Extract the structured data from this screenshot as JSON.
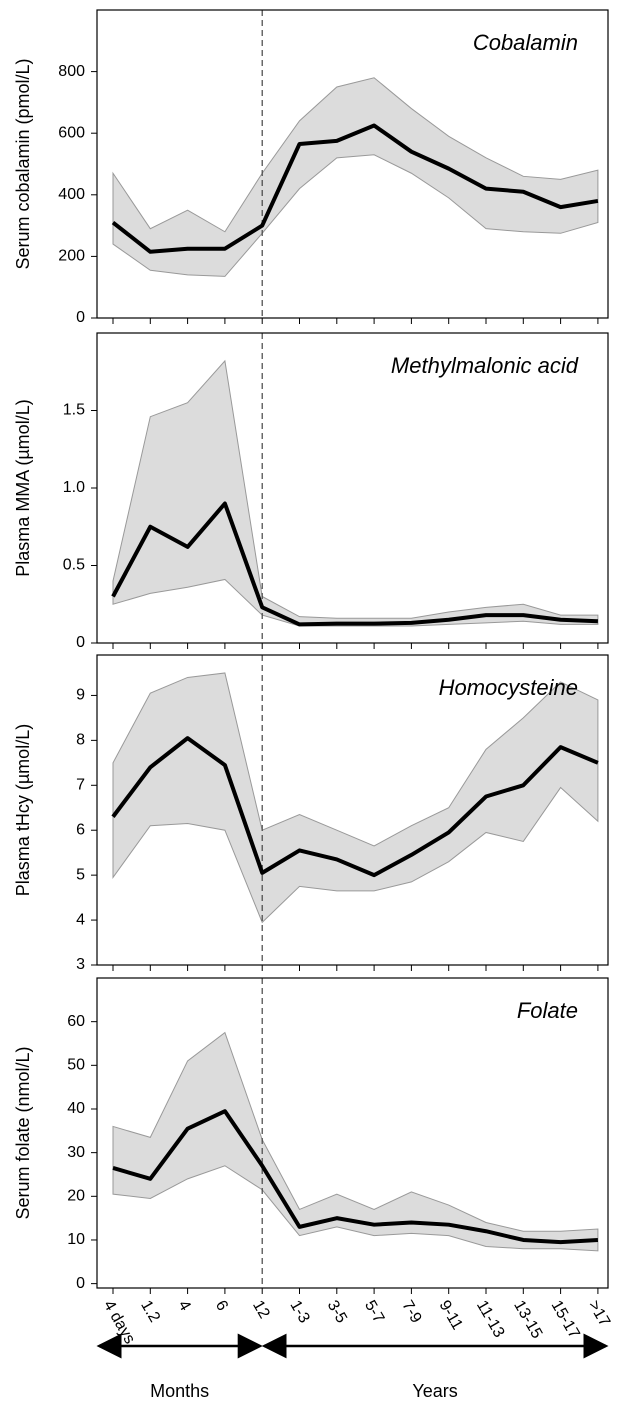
{
  "chart_data": [
    {
      "type": "line",
      "title": "Cobalamin",
      "ylabel": "Serum cobalamin (pmol/L)",
      "ylim": [
        0,
        1000
      ],
      "yticks": [
        0,
        200,
        400,
        600,
        800
      ],
      "values": [
        310,
        215,
        225,
        225,
        300,
        565,
        575,
        625,
        540,
        485,
        420,
        410,
        360,
        380
      ],
      "upper": [
        470,
        290,
        350,
        280,
        470,
        640,
        750,
        780,
        680,
        590,
        520,
        460,
        450,
        480
      ],
      "lower": [
        240,
        155,
        140,
        135,
        275,
        420,
        520,
        530,
        470,
        390,
        290,
        280,
        275,
        310
      ],
      "color": "#000000",
      "band_color": "#dcdcdc"
    },
    {
      "type": "line",
      "title": "Methylmalonic  acid",
      "ylabel": "Plasma MMA (µmol/L)",
      "ylim": [
        0,
        2.0
      ],
      "yticks": [
        0,
        0.5,
        {
          "value": 1,
          "label": "1.0"
        },
        1.5
      ],
      "values": [
        0.3,
        0.75,
        0.62,
        0.9,
        0.23,
        0.12,
        0.125,
        0.125,
        0.13,
        0.15,
        0.18,
        0.18,
        0.15,
        0.14
      ],
      "upper": [
        0.4,
        1.46,
        1.55,
        1.82,
        0.3,
        0.17,
        0.16,
        0.16,
        0.16,
        0.2,
        0.23,
        0.25,
        0.18,
        0.18
      ],
      "lower": [
        0.25,
        0.32,
        0.36,
        0.41,
        0.18,
        0.11,
        0.11,
        0.11,
        0.11,
        0.12,
        0.13,
        0.14,
        0.12,
        0.12
      ],
      "color": "#000000",
      "band_color": "#dcdcdc"
    },
    {
      "type": "line",
      "title": "Homocysteine",
      "ylabel": "Plasma tHcy (µmol/L)",
      "ylim": [
        3,
        9.9
      ],
      "yticks": [
        3,
        4,
        5,
        6,
        7,
        8,
        9
      ],
      "values": [
        6.3,
        7.4,
        8.05,
        7.45,
        5.05,
        5.55,
        5.35,
        5.0,
        5.45,
        5.95,
        6.75,
        7.0,
        7.85,
        7.5
      ],
      "upper": [
        7.5,
        9.05,
        9.4,
        9.5,
        6.0,
        6.35,
        6.0,
        5.65,
        6.1,
        6.5,
        7.8,
        8.5,
        9.3,
        8.9
      ],
      "lower": [
        4.95,
        6.1,
        6.15,
        6.0,
        3.95,
        4.75,
        4.65,
        4.65,
        4.85,
        5.3,
        5.95,
        5.75,
        6.95,
        6.2
      ],
      "color": "#000000",
      "band_color": "#dcdcdc"
    },
    {
      "type": "line",
      "title": "Folate",
      "ylabel": "Serum folate (nmol/L)",
      "ylim": [
        -1,
        70
      ],
      "yticks": [
        0,
        10,
        20,
        30,
        40,
        50,
        60
      ],
      "categories": [
        "4 days",
        "1.2",
        "4",
        "6",
        "12",
        "1-3",
        "3-5",
        "5-7",
        "7-9",
        "9-11",
        "11-13",
        "13-15",
        "15-17",
        ">17"
      ],
      "x_groups": [
        "Months",
        "Years"
      ],
      "values": [
        26.5,
        24,
        35.5,
        39.5,
        27,
        13,
        15,
        13.5,
        14,
        13.5,
        12,
        10,
        9.5,
        10
      ],
      "upper": [
        36,
        33.5,
        51,
        57.5,
        33,
        17,
        20.5,
        17,
        21,
        18,
        14,
        12,
        12,
        12.5
      ],
      "lower": [
        20.5,
        19.5,
        24,
        27,
        21.5,
        11,
        13,
        11,
        11.5,
        11,
        8.5,
        8,
        8,
        7.5
      ],
      "color": "#000000",
      "band_color": "#dcdcdc"
    }
  ]
}
